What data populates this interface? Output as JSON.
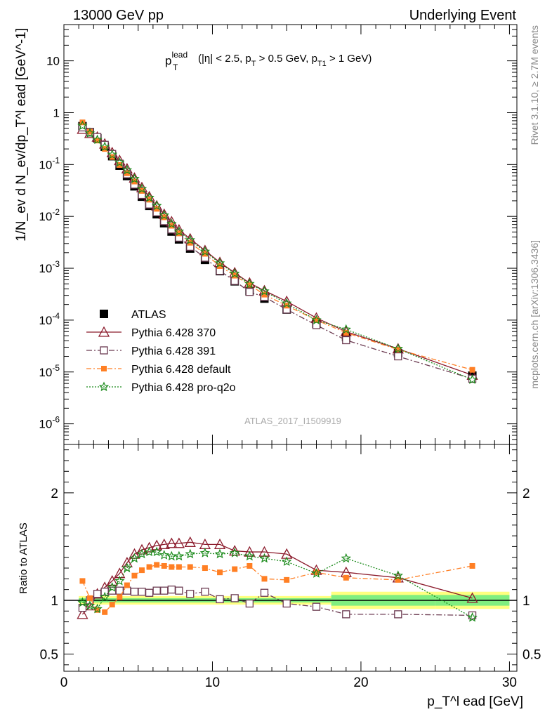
{
  "header": {
    "left": "13000 GeV pp",
    "right": "Underlying Event"
  },
  "side": {
    "top": "Rivet 3.1.10, ≥ 2.7M events",
    "bottom": "mcplots.cern.ch [arXiv:1306.3436]"
  },
  "main_title": {
    "base": "p",
    "sup": "lead",
    "sub": "T",
    "rest": "(|η| < 2.5, p",
    "rest_sub": "T",
    "rest2": " > 0.5 GeV, p",
    "rest2_sub": "T1",
    "rest3": " > 1 GeV)"
  },
  "watermark": "ATLAS_2017_I1509919",
  "ylabel_top": "1/N_ev d N_ev/dp_T^l ead [GeV^-1]",
  "ylabel_bottom": "Ratio to ATLAS",
  "xlabel": "p_T^l ead [GeV]",
  "colors": {
    "data": "#000000",
    "p370": "#8b1a2b",
    "p391": "#6b3a50",
    "pdef": "#ff7f24",
    "pq2o": "#1a8a1a"
  },
  "chart_data": [
    {
      "type": "scatter",
      "yscale": "log",
      "xlim": [
        0,
        30.5
      ],
      "ylim": [
        4e-07,
        50
      ],
      "y_tick_labels": [
        "10^-6",
        "10^-5",
        "10^-4",
        "10^-3",
        "10^-2",
        "10^-1",
        "1",
        "10"
      ],
      "x": [
        1.25,
        1.75,
        2.25,
        2.75,
        3.25,
        3.75,
        4.25,
        4.75,
        5.25,
        5.75,
        6.25,
        6.75,
        7.25,
        7.75,
        8.5,
        9.5,
        10.5,
        11.5,
        12.5,
        13.5,
        15.0,
        17.0,
        19.0,
        22.5,
        27.5
      ],
      "series": [
        {
          "name": "ATLAS",
          "marker": "square-filled",
          "values": [
            0.55,
            0.42,
            0.32,
            0.22,
            0.145,
            0.095,
            0.06,
            0.038,
            0.024,
            0.016,
            0.011,
            0.0074,
            0.0051,
            0.0036,
            0.0024,
            0.00145,
            0.00088,
            0.00056,
            0.00036,
            0.00026,
            0.00016,
            8.5e-05,
            4.7e-05,
            2.3e-05,
            8.5e-06
          ]
        },
        {
          "name": "Pythia 6.428 370",
          "marker": "triangle-open",
          "values": [
            0.48,
            0.4,
            0.34,
            0.25,
            0.17,
            0.12,
            0.083,
            0.055,
            0.036,
            0.024,
            0.016,
            0.011,
            0.0079,
            0.0055,
            0.0037,
            0.0022,
            0.0013,
            0.00082,
            0.00052,
            0.00037,
            0.00023,
            0.00011,
            6e-05,
            2.8e-05,
            8.7e-06
          ]
        },
        {
          "name": "Pythia 6.428 391",
          "marker": "square-open",
          "values": [
            0.52,
            0.42,
            0.34,
            0.24,
            0.16,
            0.104,
            0.065,
            0.041,
            0.026,
            0.017,
            0.012,
            0.0081,
            0.0056,
            0.0039,
            0.0026,
            0.0016,
            0.00089,
            0.00057,
            0.00035,
            0.00028,
            0.00016,
            8e-05,
            4.1e-05,
            2e-05,
            7.4e-06
          ]
        },
        {
          "name": "Pythia 6.428 default",
          "marker": "square-filled",
          "values": [
            0.65,
            0.43,
            0.29,
            0.2,
            0.14,
            0.098,
            0.068,
            0.047,
            0.031,
            0.021,
            0.014,
            0.0096,
            0.0066,
            0.0047,
            0.0031,
            0.0019,
            0.0011,
            0.00072,
            0.00048,
            0.00031,
            0.00019,
            0.0001,
            5.7e-05,
            2.7e-05,
            1.1e-05
          ]
        },
        {
          "name": "Pythia 6.428 pro-q2o",
          "marker": "star",
          "values": [
            0.56,
            0.4,
            0.3,
            0.22,
            0.155,
            0.11,
            0.078,
            0.053,
            0.034,
            0.023,
            0.016,
            0.0105,
            0.0072,
            0.0051,
            0.0035,
            0.0021,
            0.00125,
            0.00079,
            0.0005,
            0.00036,
            0.00021,
            0.0001,
            6.6e-05,
            2.8e-05,
            7.1e-06
          ]
        }
      ],
      "legend_placement": "lower-left"
    },
    {
      "type": "line",
      "ylabel": "Ratio to ATLAS",
      "xlim": [
        0,
        30.5
      ],
      "ylim": [
        0.34,
        2.45
      ],
      "y_tick_labels": [
        "0.5",
        "1",
        "2"
      ],
      "x_tick_labels": [
        "0",
        "10",
        "20",
        "30"
      ],
      "x": [
        1.25,
        1.75,
        2.25,
        2.75,
        3.25,
        3.75,
        4.25,
        4.75,
        5.25,
        5.75,
        6.25,
        6.75,
        7.25,
        7.75,
        8.5,
        9.5,
        10.5,
        11.5,
        12.5,
        13.5,
        15.0,
        17.0,
        19.0,
        22.5,
        27.5
      ],
      "series": [
        {
          "name": "Pythia 6.428 370",
          "values": [
            0.87,
            0.95,
            1.06,
            1.12,
            1.18,
            1.25,
            1.35,
            1.43,
            1.47,
            1.49,
            1.51,
            1.52,
            1.53,
            1.53,
            1.54,
            1.52,
            1.52,
            1.46,
            1.45,
            1.45,
            1.43,
            1.28,
            1.26,
            1.21,
            1.02
          ]
        },
        {
          "name": "Pythia 6.428 391",
          "values": [
            0.93,
            1.0,
            1.06,
            1.08,
            1.09,
            1.09,
            1.09,
            1.08,
            1.08,
            1.07,
            1.09,
            1.09,
            1.1,
            1.09,
            1.06,
            1.08,
            1.01,
            1.02,
            0.97,
            1.07,
            0.97,
            0.94,
            0.87,
            0.87,
            0.86
          ]
        },
        {
          "name": "Pythia 6.428 default",
          "values": [
            1.18,
            1.02,
            0.91,
            0.89,
            0.96,
            1.03,
            1.14,
            1.23,
            1.28,
            1.31,
            1.33,
            1.32,
            1.31,
            1.31,
            1.31,
            1.3,
            1.26,
            1.29,
            1.32,
            1.2,
            1.19,
            1.26,
            1.21,
            1.19,
            1.32
          ]
        },
        {
          "name": "Pythia 6.428 pro-q2o",
          "values": [
            0.98,
            0.95,
            0.92,
            1.03,
            1.12,
            1.18,
            1.3,
            1.39,
            1.43,
            1.45,
            1.45,
            1.42,
            1.41,
            1.41,
            1.43,
            1.44,
            1.43,
            1.44,
            1.41,
            1.39,
            1.36,
            1.25,
            1.39,
            1.23,
            0.84
          ]
        }
      ],
      "error_bands": [
        {
          "from": 1.0,
          "to": 18.0,
          "inner": 0.02,
          "outer": 0.04
        },
        {
          "from": 18.0,
          "to": 25.0,
          "inner": 0.05,
          "outer": 0.08
        },
        {
          "from": 25.0,
          "to": 30.0,
          "inner": 0.05,
          "outer": 0.08
        }
      ]
    }
  ]
}
